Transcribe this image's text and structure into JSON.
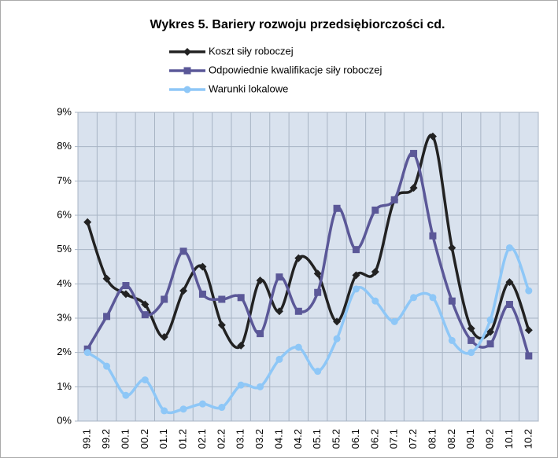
{
  "chart_data": {
    "type": "line",
    "title": "Wykres 5. Bariery rozwoju przedsiębiorczości cd.",
    "categories": [
      "99.1",
      "99.2",
      "00.1",
      "00.2",
      "01.1",
      "01.2",
      "02.1",
      "02.2",
      "03.1",
      "03.2",
      "04.1",
      "04.2",
      "05.1",
      "05.2",
      "06.1",
      "06.2",
      "07.1",
      "07.2",
      "08.1",
      "08.2",
      "09.1",
      "09.2",
      "10.1",
      "10.2"
    ],
    "series": [
      {
        "name": "Koszt siły roboczej",
        "color": "#222222",
        "marker": "diamond",
        "values": [
          5.8,
          4.15,
          3.7,
          3.4,
          2.45,
          3.8,
          4.5,
          2.8,
          2.2,
          4.1,
          3.2,
          4.75,
          4.3,
          2.9,
          4.25,
          4.35,
          6.45,
          6.8,
          8.3,
          5.05,
          2.7,
          2.6,
          4.05,
          2.65
        ]
      },
      {
        "name": "Odpowiednie kwalifikacje siły roboczej",
        "color": "#5b5898",
        "marker": "square",
        "values": [
          2.1,
          3.05,
          3.95,
          3.1,
          3.55,
          4.95,
          3.7,
          3.55,
          3.6,
          2.55,
          4.2,
          3.2,
          3.75,
          6.2,
          5.0,
          6.15,
          6.45,
          7.8,
          5.4,
          3.5,
          2.35,
          2.25,
          3.4,
          1.9
        ]
      },
      {
        "name": "Warunki lokalowe",
        "color": "#8ec7f7",
        "marker": "circle",
        "values": [
          2.0,
          1.6,
          0.75,
          1.2,
          0.3,
          0.35,
          0.5,
          0.4,
          1.05,
          1.0,
          1.8,
          2.15,
          1.45,
          2.4,
          3.85,
          3.5,
          2.9,
          3.6,
          3.6,
          2.35,
          2.0,
          2.95,
          5.05,
          3.8
        ]
      }
    ],
    "ylim": [
      0,
      9
    ],
    "yticks": [
      {
        "value": 0,
        "label": "0%"
      },
      {
        "value": 1,
        "label": "1%"
      },
      {
        "value": 2,
        "label": "2%"
      },
      {
        "value": 3,
        "label": "3%"
      },
      {
        "value": 4,
        "label": "4%"
      },
      {
        "value": 5,
        "label": "5%"
      },
      {
        "value": 6,
        "label": "6%"
      },
      {
        "value": 7,
        "label": "7%"
      },
      {
        "value": 8,
        "label": "8%"
      },
      {
        "value": 9,
        "label": "9%"
      }
    ],
    "grid": true,
    "legend": "top"
  }
}
